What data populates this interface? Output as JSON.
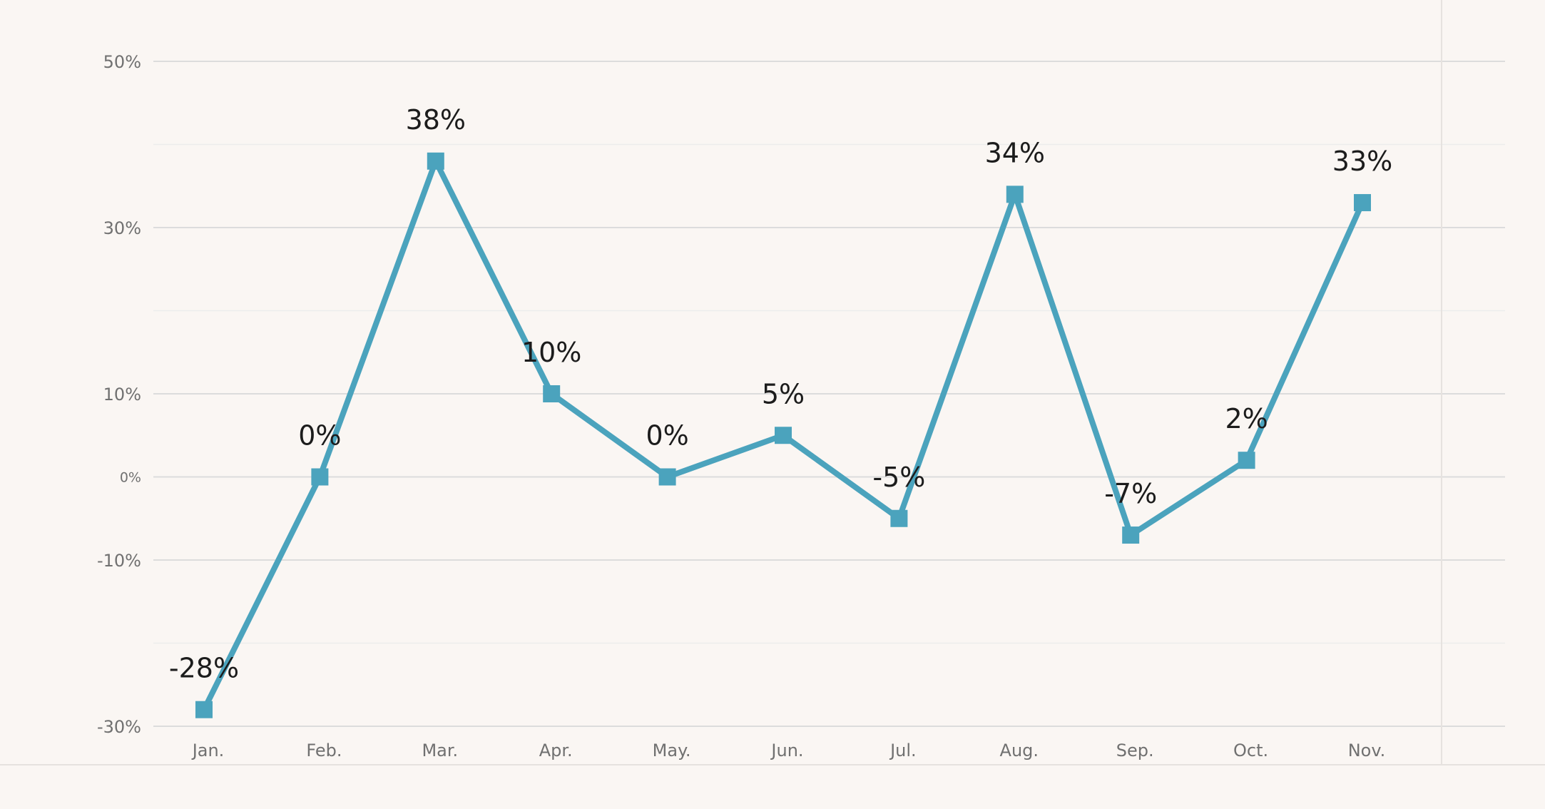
{
  "chart_data": {
    "type": "line",
    "title": "",
    "xlabel": "",
    "ylabel": "",
    "categories": [
      "Jan.",
      "Feb.",
      "Mar.",
      "Apr.",
      "May.",
      "Jun.",
      "Jul.",
      "Aug.",
      "Sep.",
      "Oct.",
      "Nov."
    ],
    "series": [
      {
        "values": [
          -28,
          0,
          38,
          10,
          0,
          5,
          -5,
          34,
          -7,
          2,
          33
        ],
        "data_labels": [
          "-28%",
          "0%",
          "38%",
          "10%",
          "0%",
          "5%",
          "-5%",
          "34%",
          "-7%",
          "2%",
          "33%"
        ],
        "marker": "square",
        "color": "#4ba3bd"
      }
    ],
    "y_ticks": [
      50,
      30,
      10,
      0,
      -10,
      -30
    ],
    "y_tick_labels": [
      "50%",
      "30%",
      "10%",
      "0%",
      "-10%",
      "-30%"
    ],
    "ylim": [
      -30,
      50
    ],
    "grid": true,
    "legend": "none"
  },
  "colors": {
    "background": "#faf6f3",
    "series": "#4ba3bd",
    "grid": "#dcdcdc"
  }
}
